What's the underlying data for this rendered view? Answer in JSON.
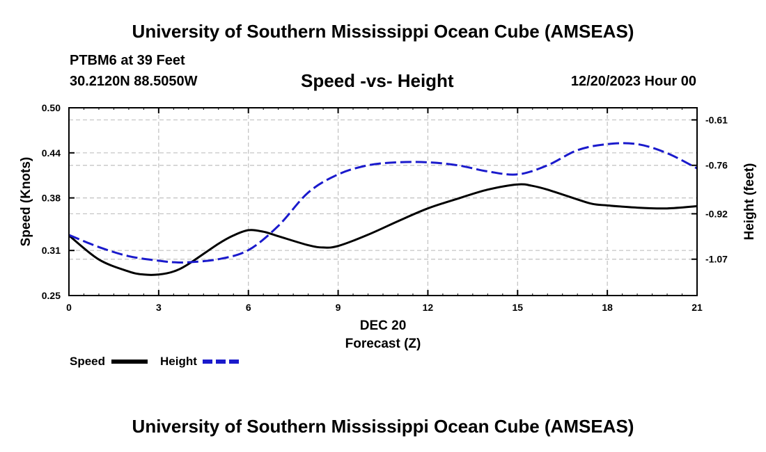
{
  "header": {
    "title": "University of Southern Mississippi Ocean Cube (AMSEAS)",
    "station": "PTBM6 at 39 Feet",
    "coords": "30.2120N  88.5050W",
    "subtitle": "Speed -vs- Height",
    "datetime": "12/20/2023 Hour 00"
  },
  "footer": {
    "title": "University of Southern Mississippi Ocean Cube (AMSEAS)"
  },
  "chart_data": {
    "type": "line",
    "title": "Speed -vs- Height",
    "xlabel": "Forecast (Z)",
    "xlabel_date": "DEC 20",
    "ylabel_left": "Speed (Knots)",
    "ylabel_right": "Height (feet)",
    "xlim": [
      0,
      21
    ],
    "ylim_left": [
      0.25,
      0.5
    ],
    "ylim_right": [
      -1.19,
      -0.57
    ],
    "x_ticks": [
      0,
      3,
      6,
      9,
      12,
      15,
      18,
      21
    ],
    "x_tick_labels": [
      "0",
      "3",
      "6",
      "9",
      "12",
      "15",
      "18",
      "21"
    ],
    "y_left_ticks": [
      0.25,
      0.31,
      0.38,
      0.44,
      0.5
    ],
    "y_left_tick_labels": [
      "0.25",
      "0.31",
      "0.38",
      "0.44",
      "0.50"
    ],
    "y_right_ticks": [
      -1.07,
      -0.92,
      -0.76,
      -0.61
    ],
    "y_right_tick_labels": [
      "-1.07",
      "-0.92",
      "-0.76",
      "-0.61"
    ],
    "grid": true,
    "legend_position": "bottom-left",
    "colors": {
      "speed": "#000000",
      "height": "#1a1acc",
      "grid": "#c0c0c0"
    },
    "series": [
      {
        "name": "Speed",
        "axis": "left",
        "style": "solid",
        "x": [
          0,
          1,
          2,
          2.5,
          3,
          3.5,
          4,
          5,
          5.5,
          6,
          6.5,
          7,
          8,
          8.5,
          9,
          10,
          11,
          12,
          13,
          14,
          15,
          15.5,
          16,
          17,
          17.5,
          18,
          19,
          20,
          21
        ],
        "values": [
          0.33,
          0.298,
          0.282,
          0.278,
          0.278,
          0.282,
          0.292,
          0.319,
          0.33,
          0.337,
          0.335,
          0.329,
          0.317,
          0.314,
          0.316,
          0.331,
          0.349,
          0.366,
          0.379,
          0.391,
          0.398,
          0.396,
          0.391,
          0.378,
          0.372,
          0.37,
          0.367,
          0.366,
          0.369
        ]
      },
      {
        "name": "Height",
        "axis": "right",
        "style": "dashed",
        "x": [
          0,
          1,
          2,
          3,
          3.5,
          4,
          5,
          6,
          7,
          8,
          9,
          10,
          11,
          12,
          13,
          14,
          15,
          16,
          17,
          18,
          19,
          20,
          21
        ],
        "values": [
          -0.99,
          -1.03,
          -1.06,
          -1.075,
          -1.08,
          -1.08,
          -1.07,
          -1.04,
          -0.96,
          -0.85,
          -0.79,
          -0.76,
          -0.75,
          -0.75,
          -0.76,
          -0.78,
          -0.79,
          -0.76,
          -0.71,
          -0.69,
          -0.69,
          -0.72,
          -0.77
        ]
      }
    ]
  }
}
